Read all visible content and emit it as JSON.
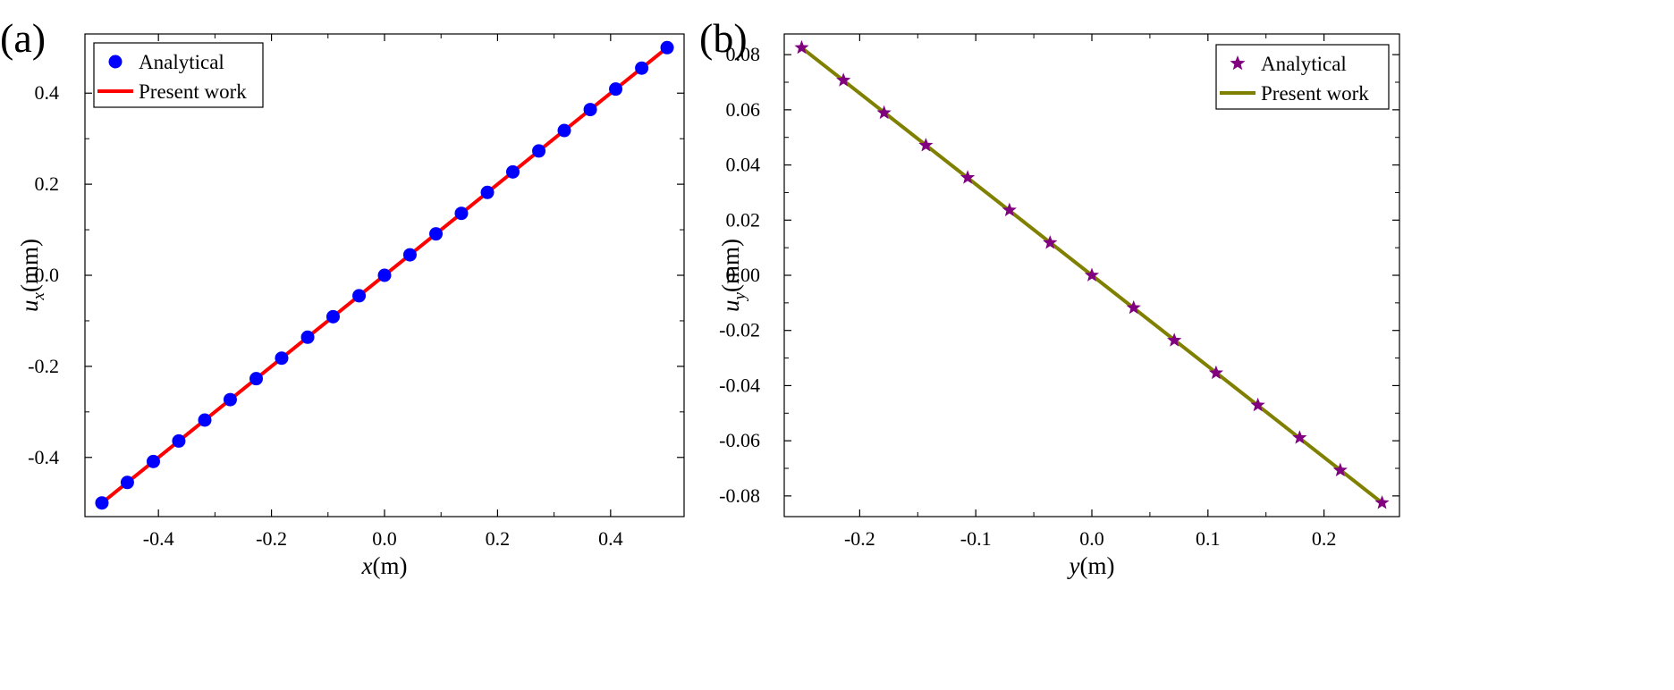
{
  "chart_data": [
    {
      "type": "line",
      "panel_label": "(a)",
      "xlabel_var": "x",
      "xlabel_unit": "(m)",
      "ylabel_var": "u",
      "ylabel_sub": "x",
      "ylabel_unit": "(mm)",
      "xlim": [
        -0.53,
        0.53
      ],
      "ylim": [
        -0.53,
        0.53
      ],
      "xticks": [
        -0.4,
        -0.2,
        0.0,
        0.2,
        0.4
      ],
      "xtick_labels": [
        "-0.4",
        "-0.2",
        "0.0",
        "0.2",
        "0.4"
      ],
      "yticks": [
        -0.4,
        -0.2,
        0.0,
        0.2,
        0.4
      ],
      "ytick_labels": [
        "-0.4",
        "-0.2",
        "0.0",
        "0.2",
        "0.4"
      ],
      "legend_position": "top-left",
      "series": [
        {
          "name": "Analytical",
          "kind": "markers",
          "marker": "circle",
          "color": "#0000ff",
          "x": [
            -0.5,
            -0.455,
            -0.409,
            -0.364,
            -0.318,
            -0.273,
            -0.227,
            -0.182,
            -0.136,
            -0.091,
            -0.045,
            0.0,
            0.045,
            0.091,
            0.136,
            0.182,
            0.227,
            0.273,
            0.318,
            0.364,
            0.409,
            0.455,
            0.5
          ],
          "y": [
            -0.5,
            -0.455,
            -0.409,
            -0.364,
            -0.318,
            -0.273,
            -0.227,
            -0.182,
            -0.136,
            -0.091,
            -0.045,
            0.0,
            0.045,
            0.091,
            0.136,
            0.182,
            0.227,
            0.273,
            0.318,
            0.364,
            0.409,
            0.455,
            0.5
          ]
        },
        {
          "name": "Present work",
          "kind": "line",
          "color": "#ff0000",
          "x": [
            -0.5,
            0.5
          ],
          "y": [
            -0.5,
            0.5
          ]
        }
      ]
    },
    {
      "type": "line",
      "panel_label": "(b)",
      "xlabel_var": "y",
      "xlabel_unit": "(m)",
      "ylabel_var": "u",
      "ylabel_sub": "y",
      "ylabel_unit": "(mm)",
      "xlim": [
        -0.265,
        0.265
      ],
      "ylim": [
        -0.0875,
        0.0875
      ],
      "xticks": [
        -0.2,
        -0.1,
        0.0,
        0.1,
        0.2
      ],
      "xtick_labels": [
        "-0.2",
        "-0.1",
        "0.0",
        "0.1",
        "0.2"
      ],
      "yticks": [
        0.08,
        0.06,
        0.04,
        0.02,
        0.0,
        -0.02,
        -0.04,
        -0.06,
        -0.08
      ],
      "ytick_labels": [
        "0.08",
        "0.06",
        "0.04",
        "0.02",
        "0.00",
        "-0.02",
        "-0.04",
        "-0.06",
        "-0.08"
      ],
      "legend_position": "top-right",
      "series": [
        {
          "name": "Analytical",
          "kind": "markers",
          "marker": "star",
          "color": "#800080",
          "x": [
            -0.25,
            -0.214,
            -0.179,
            -0.143,
            -0.107,
            -0.071,
            -0.036,
            0.0,
            0.036,
            0.071,
            0.107,
            0.143,
            0.179,
            0.214,
            0.25
          ],
          "y": [
            0.0825,
            0.0707,
            0.0589,
            0.0471,
            0.0354,
            0.0236,
            0.0118,
            0.0,
            -0.0118,
            -0.0236,
            -0.0354,
            -0.0471,
            -0.0589,
            -0.0707,
            -0.0825
          ]
        },
        {
          "name": "Present work",
          "kind": "line",
          "color": "#808000",
          "x": [
            -0.25,
            0.25
          ],
          "y": [
            0.0825,
            -0.0825
          ]
        }
      ]
    }
  ]
}
